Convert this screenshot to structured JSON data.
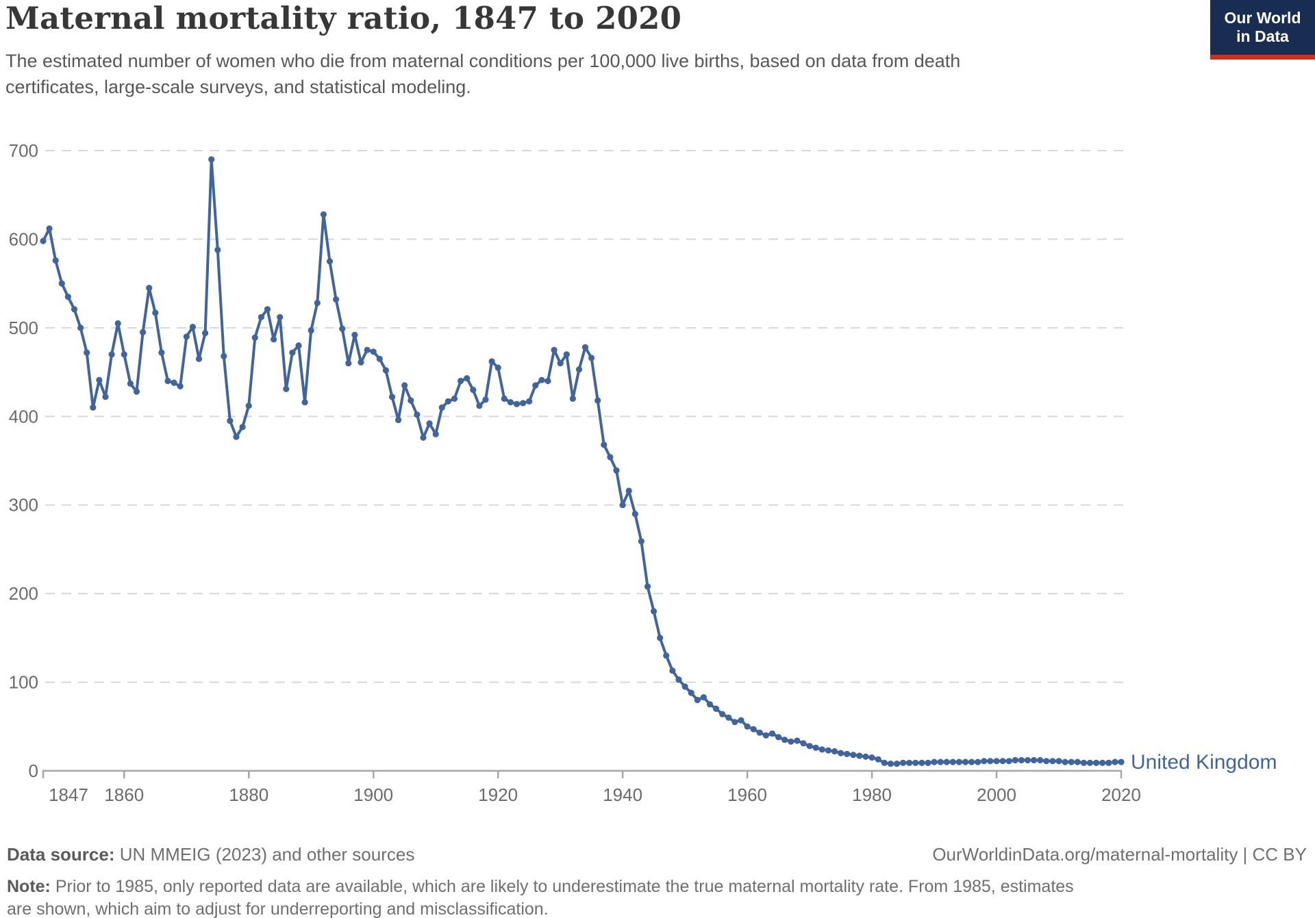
{
  "header": {
    "title": "Maternal mortality ratio, 1847 to 2020",
    "subtitle": "The estimated number of women who die from maternal conditions per 100,000 live births, based on data from death certificates, large-scale surveys, and statistical modeling.",
    "logo_line1": "Our World",
    "logo_line2": "in Data"
  },
  "chart_data": {
    "type": "line",
    "title": "Maternal mortality ratio, 1847 to 2020",
    "xlabel": "",
    "ylabel": "",
    "xlim": [
      1847,
      2020
    ],
    "ylim": [
      0,
      700
    ],
    "x_ticks": [
      1847,
      1860,
      1880,
      1900,
      1920,
      1940,
      1960,
      1980,
      2000,
      2020
    ],
    "y_ticks": [
      0,
      100,
      200,
      300,
      400,
      500,
      600,
      700
    ],
    "grid": true,
    "gridline_style": "dashed",
    "legend_label": "United Kingdom",
    "legend_position": "right-of-line-end",
    "series": [
      {
        "name": "United Kingdom",
        "color": "#3f649e",
        "marker": "circle",
        "points": [
          [
            1847,
            598
          ],
          [
            1848,
            612
          ],
          [
            1849,
            576
          ],
          [
            1850,
            550
          ],
          [
            1851,
            535
          ],
          [
            1852,
            521
          ],
          [
            1853,
            500
          ],
          [
            1854,
            472
          ],
          [
            1855,
            410
          ],
          [
            1856,
            441
          ],
          [
            1857,
            422
          ],
          [
            1858,
            470
          ],
          [
            1859,
            505
          ],
          [
            1860,
            470
          ],
          [
            1861,
            437
          ],
          [
            1862,
            428
          ],
          [
            1863,
            495
          ],
          [
            1864,
            545
          ],
          [
            1865,
            517
          ],
          [
            1866,
            472
          ],
          [
            1867,
            440
          ],
          [
            1868,
            438
          ],
          [
            1869,
            434
          ],
          [
            1870,
            490
          ],
          [
            1871,
            501
          ],
          [
            1872,
            465
          ],
          [
            1873,
            494
          ],
          [
            1874,
            690
          ],
          [
            1875,
            588
          ],
          [
            1876,
            468
          ],
          [
            1877,
            395
          ],
          [
            1878,
            377
          ],
          [
            1879,
            388
          ],
          [
            1880,
            412
          ],
          [
            1881,
            489
          ],
          [
            1882,
            512
          ],
          [
            1883,
            521
          ],
          [
            1884,
            487
          ],
          [
            1885,
            512
          ],
          [
            1886,
            431
          ],
          [
            1887,
            472
          ],
          [
            1888,
            480
          ],
          [
            1889,
            416
          ],
          [
            1890,
            497
          ],
          [
            1891,
            528
          ],
          [
            1892,
            628
          ],
          [
            1893,
            575
          ],
          [
            1894,
            532
          ],
          [
            1895,
            499
          ],
          [
            1896,
            460
          ],
          [
            1897,
            492
          ],
          [
            1898,
            461
          ],
          [
            1899,
            475
          ],
          [
            1900,
            473
          ],
          [
            1901,
            465
          ],
          [
            1902,
            452
          ],
          [
            1903,
            422
          ],
          [
            1904,
            396
          ],
          [
            1905,
            435
          ],
          [
            1906,
            418
          ],
          [
            1907,
            402
          ],
          [
            1908,
            376
          ],
          [
            1909,
            392
          ],
          [
            1910,
            380
          ],
          [
            1911,
            410
          ],
          [
            1912,
            417
          ],
          [
            1913,
            420
          ],
          [
            1914,
            440
          ],
          [
            1915,
            443
          ],
          [
            1916,
            430
          ],
          [
            1917,
            412
          ],
          [
            1918,
            419
          ],
          [
            1919,
            462
          ],
          [
            1920,
            455
          ],
          [
            1921,
            420
          ],
          [
            1922,
            416
          ],
          [
            1923,
            414
          ],
          [
            1924,
            415
          ],
          [
            1925,
            417
          ],
          [
            1926,
            435
          ],
          [
            1927,
            441
          ],
          [
            1928,
            440
          ],
          [
            1929,
            475
          ],
          [
            1930,
            460
          ],
          [
            1931,
            470
          ],
          [
            1932,
            420
          ],
          [
            1933,
            453
          ],
          [
            1934,
            478
          ],
          [
            1935,
            466
          ],
          [
            1936,
            418
          ],
          [
            1937,
            368
          ],
          [
            1938,
            354
          ],
          [
            1939,
            339
          ],
          [
            1940,
            300
          ],
          [
            1941,
            316
          ],
          [
            1942,
            290
          ],
          [
            1943,
            259
          ],
          [
            1944,
            208
          ],
          [
            1945,
            180
          ],
          [
            1946,
            150
          ],
          [
            1947,
            130
          ],
          [
            1948,
            113
          ],
          [
            1949,
            103
          ],
          [
            1950,
            95
          ],
          [
            1951,
            88
          ],
          [
            1952,
            80
          ],
          [
            1953,
            83
          ],
          [
            1954,
            75
          ],
          [
            1955,
            70
          ],
          [
            1956,
            64
          ],
          [
            1957,
            60
          ],
          [
            1958,
            55
          ],
          [
            1959,
            57
          ],
          [
            1960,
            50
          ],
          [
            1961,
            47
          ],
          [
            1962,
            43
          ],
          [
            1963,
            40
          ],
          [
            1964,
            42
          ],
          [
            1965,
            38
          ],
          [
            1966,
            35
          ],
          [
            1967,
            33
          ],
          [
            1968,
            34
          ],
          [
            1969,
            31
          ],
          [
            1970,
            28
          ],
          [
            1971,
            26
          ],
          [
            1972,
            24
          ],
          [
            1973,
            23
          ],
          [
            1974,
            22
          ],
          [
            1975,
            20
          ],
          [
            1976,
            19
          ],
          [
            1977,
            18
          ],
          [
            1978,
            17
          ],
          [
            1979,
            16
          ],
          [
            1980,
            15
          ],
          [
            1981,
            13
          ],
          [
            1982,
            9
          ],
          [
            1983,
            8
          ],
          [
            1984,
            8
          ],
          [
            1985,
            9
          ],
          [
            1986,
            9
          ],
          [
            1987,
            9
          ],
          [
            1988,
            9
          ],
          [
            1989,
            9
          ],
          [
            1990,
            10
          ],
          [
            1991,
            10
          ],
          [
            1992,
            10
          ],
          [
            1993,
            10
          ],
          [
            1994,
            10
          ],
          [
            1995,
            10
          ],
          [
            1996,
            10
          ],
          [
            1997,
            10
          ],
          [
            1998,
            11
          ],
          [
            1999,
            11
          ],
          [
            2000,
            11
          ],
          [
            2001,
            11
          ],
          [
            2002,
            11
          ],
          [
            2003,
            12
          ],
          [
            2004,
            12
          ],
          [
            2005,
            12
          ],
          [
            2006,
            12
          ],
          [
            2007,
            12
          ],
          [
            2008,
            11
          ],
          [
            2009,
            11
          ],
          [
            2010,
            11
          ],
          [
            2011,
            10
          ],
          [
            2012,
            10
          ],
          [
            2013,
            10
          ],
          [
            2014,
            9
          ],
          [
            2015,
            9
          ],
          [
            2016,
            9
          ],
          [
            2017,
            9
          ],
          [
            2018,
            9
          ],
          [
            2019,
            10
          ],
          [
            2020,
            10
          ]
        ]
      }
    ]
  },
  "footer": {
    "data_source_label": "Data source:",
    "data_source_text": " UN MMEIG (2023) and other sources",
    "credit": "OurWorldinData.org/maternal-mortality | CC BY",
    "note_label": "Note:",
    "note_text": " Prior to 1985, only reported data are available, which are likely to underestimate the true maternal mortality rate. From 1985, estimates are shown, which aim to adjust for underreporting and misclassification."
  },
  "colors": {
    "line": "#3f649e",
    "logo_background": "#192d52",
    "logo_underline": "#dc2a1a",
    "gridline": "#d8d8d8",
    "axis": "#a6a6a6"
  }
}
